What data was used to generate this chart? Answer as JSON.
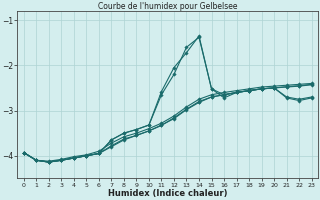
{
  "title": "Courbe de l'humidex pour Gelbelsee",
  "xlabel": "Humidex (Indice chaleur)",
  "background_color": "#d4eeee",
  "grid_color": "#aed4d4",
  "line_color": "#1a6b6b",
  "xlim": [
    -0.5,
    23.5
  ],
  "ylim": [
    -4.5,
    -0.8
  ],
  "yticks": [
    -4,
    -3,
    -2,
    -1
  ],
  "xticks": [
    0,
    1,
    2,
    3,
    4,
    5,
    6,
    7,
    8,
    9,
    10,
    11,
    12,
    13,
    14,
    15,
    16,
    17,
    18,
    19,
    20,
    21,
    22,
    23
  ],
  "lines": [
    {
      "x": [
        0,
        1,
        2,
        3,
        4,
        5,
        6,
        7,
        8,
        9,
        10,
        11,
        12,
        13,
        14,
        15,
        16,
        17,
        18,
        19,
        20,
        21,
        22,
        23
      ],
      "y": [
        -3.93,
        -4.1,
        -4.12,
        -4.08,
        -4.02,
        -3.98,
        -3.9,
        -3.72,
        -3.58,
        -3.5,
        -3.4,
        -3.28,
        -3.12,
        -2.92,
        -2.75,
        -2.65,
        -2.6,
        -2.56,
        -2.52,
        -2.48,
        -2.46,
        -2.44,
        -2.42,
        -2.4
      ]
    },
    {
      "x": [
        0,
        1,
        2,
        3,
        4,
        5,
        6,
        7,
        8,
        9,
        10,
        11,
        12,
        13,
        14,
        15,
        16,
        17,
        18,
        19,
        20,
        21,
        22,
        23
      ],
      "y": [
        -3.93,
        -4.1,
        -4.14,
        -4.1,
        -4.05,
        -4.0,
        -3.95,
        -3.78,
        -3.63,
        -3.55,
        -3.45,
        -3.33,
        -3.16,
        -2.97,
        -2.8,
        -2.7,
        -2.65,
        -2.6,
        -2.56,
        -2.52,
        -2.5,
        -2.48,
        -2.46,
        -2.43
      ]
    },
    {
      "x": [
        0,
        1,
        2,
        3,
        4,
        5,
        6,
        7,
        8,
        9,
        10,
        11,
        12,
        13,
        14,
        15,
        16,
        17,
        18,
        19,
        20,
        21,
        22,
        23
      ],
      "y": [
        -3.93,
        -4.1,
        -4.14,
        -4.1,
        -4.05,
        -4.0,
        -3.95,
        -3.65,
        -3.5,
        -3.42,
        -3.32,
        -2.65,
        -2.2,
        -1.6,
        -1.38,
        -2.52,
        -2.72,
        -2.6,
        -2.56,
        -2.52,
        -2.5,
        -2.72,
        -2.78,
        -2.72
      ]
    },
    {
      "x": [
        0,
        1,
        2,
        3,
        4,
        5,
        6,
        7,
        8,
        9,
        10,
        11,
        12,
        13,
        14,
        15,
        16,
        17,
        18,
        19,
        20,
        21,
        22,
        23
      ],
      "y": [
        -3.93,
        -4.1,
        -4.14,
        -4.1,
        -4.05,
        -4.0,
        -3.95,
        -3.65,
        -3.5,
        -3.42,
        -3.32,
        -2.58,
        -2.05,
        -1.72,
        -1.35,
        -2.52,
        -2.65,
        -2.6,
        -2.56,
        -2.52,
        -2.5,
        -2.7,
        -2.75,
        -2.7
      ]
    },
    {
      "x": [
        0,
        1,
        2,
        3,
        4,
        5,
        6,
        7,
        8,
        9,
        10,
        11,
        12,
        13,
        14,
        15,
        16,
        17,
        18,
        19,
        20,
        21,
        22,
        23
      ],
      "y": [
        -3.93,
        -4.1,
        -4.14,
        -4.1,
        -4.05,
        -4.0,
        -3.95,
        -3.8,
        -3.65,
        -3.55,
        -3.45,
        -3.32,
        -3.18,
        -2.98,
        -2.82,
        -2.7,
        -2.65,
        -2.6,
        -2.56,
        -2.52,
        -2.5,
        -2.47,
        -2.45,
        -2.42
      ]
    }
  ],
  "marker": "D",
  "markersize": 1.8,
  "linewidth": 0.8
}
